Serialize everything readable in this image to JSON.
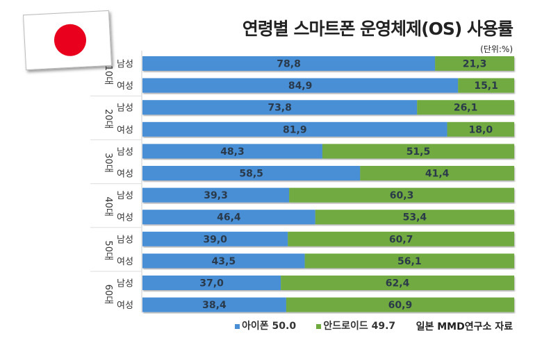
{
  "chart_data": {
    "type": "bar",
    "orientation": "horizontal",
    "stacked": true,
    "title": "연령별 스마트폰 운영체제(OS) 사용률",
    "unit": "(단위:%)",
    "groups": [
      "10대",
      "20대",
      "30대",
      "40대",
      "50대",
      "60대"
    ],
    "sub_categories": [
      "남성",
      "여성"
    ],
    "series": [
      {
        "name": "아이폰",
        "color": "#4a8fd6",
        "values": [
          78.8,
          84.9,
          73.8,
          81.9,
          48.3,
          58.5,
          39.3,
          46.4,
          39.0,
          43.5,
          37.0,
          38.4
        ],
        "labels": [
          "78,8",
          "84,9",
          "73,8",
          "81,9",
          "48,3",
          "58,5",
          "39,3",
          "46,4",
          "39,0",
          "43,5",
          "37,0",
          "38,4"
        ]
      },
      {
        "name": "안드로이드",
        "color": "#6faa3f",
        "values": [
          21.3,
          15.1,
          26.1,
          18.0,
          51.5,
          41.4,
          60.3,
          53.4,
          60.7,
          56.1,
          62.4,
          60.9
        ],
        "labels": [
          "21,3",
          "15,1",
          "26,1",
          "18,0",
          "51,5",
          "41,4",
          "60,3",
          "53,4",
          "60,7",
          "56,1",
          "62,4",
          "60,9"
        ]
      }
    ],
    "legend": [
      {
        "label": "아이폰 50.0",
        "color": "#4a8fd6"
      },
      {
        "label": "안드로이드 49.7",
        "color": "#6faa3f"
      }
    ]
  },
  "source": "일본 MMD연구소 자료"
}
